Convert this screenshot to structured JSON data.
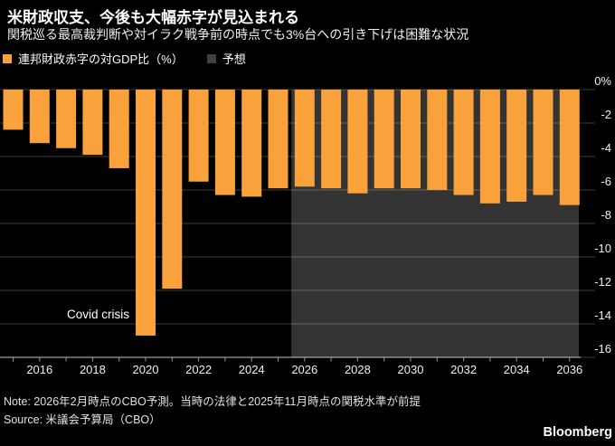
{
  "header": {
    "title": "米財政収支、今後も大幅赤字が見込まれる",
    "subtitle": "関税巡る最高裁判断や対イラク戦争前の時点でも3%台への引き下げは困難な状況"
  },
  "legend": [
    {
      "label": "連邦財政赤字の対GDP比（%）",
      "color": "#F9A13A"
    },
    {
      "label": "予想",
      "color": "#404040"
    }
  ],
  "chart_data": {
    "type": "bar",
    "title": "米財政収支、今後も大幅赤字が見込まれる",
    "series_name": "連邦財政赤字の対GDP比（%）",
    "unit": "% of GDP",
    "x": [
      2015,
      2016,
      2017,
      2018,
      2019,
      2020,
      2021,
      2022,
      2023,
      2024,
      2025,
      2026,
      2027,
      2028,
      2029,
      2030,
      2031,
      2032,
      2033,
      2034,
      2035,
      2036
    ],
    "values": [
      -2.4,
      -3.2,
      -3.5,
      -3.9,
      -4.7,
      -14.7,
      -11.9,
      -5.5,
      -6.3,
      -6.4,
      -5.9,
      -5.8,
      -5.9,
      -6.2,
      -5.9,
      -5.9,
      -6.0,
      -6.3,
      -6.8,
      -6.7,
      -6.3,
      -6.9
    ],
    "forecast_from": 2026,
    "forecast_label": "予想",
    "ylim": [
      -16,
      0
    ],
    "grid": true,
    "legend_position": "top-left",
    "yticks": [
      0,
      -2,
      -4,
      -6,
      -8,
      -10,
      -12,
      -14,
      -16
    ],
    "ytick_labels": [
      "0%",
      "-2",
      "-4",
      "-6",
      "-8",
      "-10",
      "-12",
      "-14",
      "-16"
    ],
    "xtick_labels": [
      "2016",
      "2018",
      "2020",
      "2022",
      "2024",
      "2026",
      "2028",
      "2030",
      "2032",
      "2034",
      "2036"
    ],
    "annotations": [
      {
        "text": "Covid crisis",
        "year": 2020,
        "value_at": -13.4
      }
    ],
    "colors": {
      "bar": "#F9A13A",
      "forecast_region": "#333333",
      "background": "#000000",
      "gridline": "#3C3C3C",
      "axis_line": "#C9C9C9",
      "tick": "#999999",
      "label": "#F0F0F0"
    }
  },
  "footer": {
    "note": "Note: 2026年2月時点のCBO予測。当時の法律と2025年11月時点の関税水準が前提",
    "source": "Source: 米議会予算局（CBO）",
    "brand": "Bloomberg"
  }
}
